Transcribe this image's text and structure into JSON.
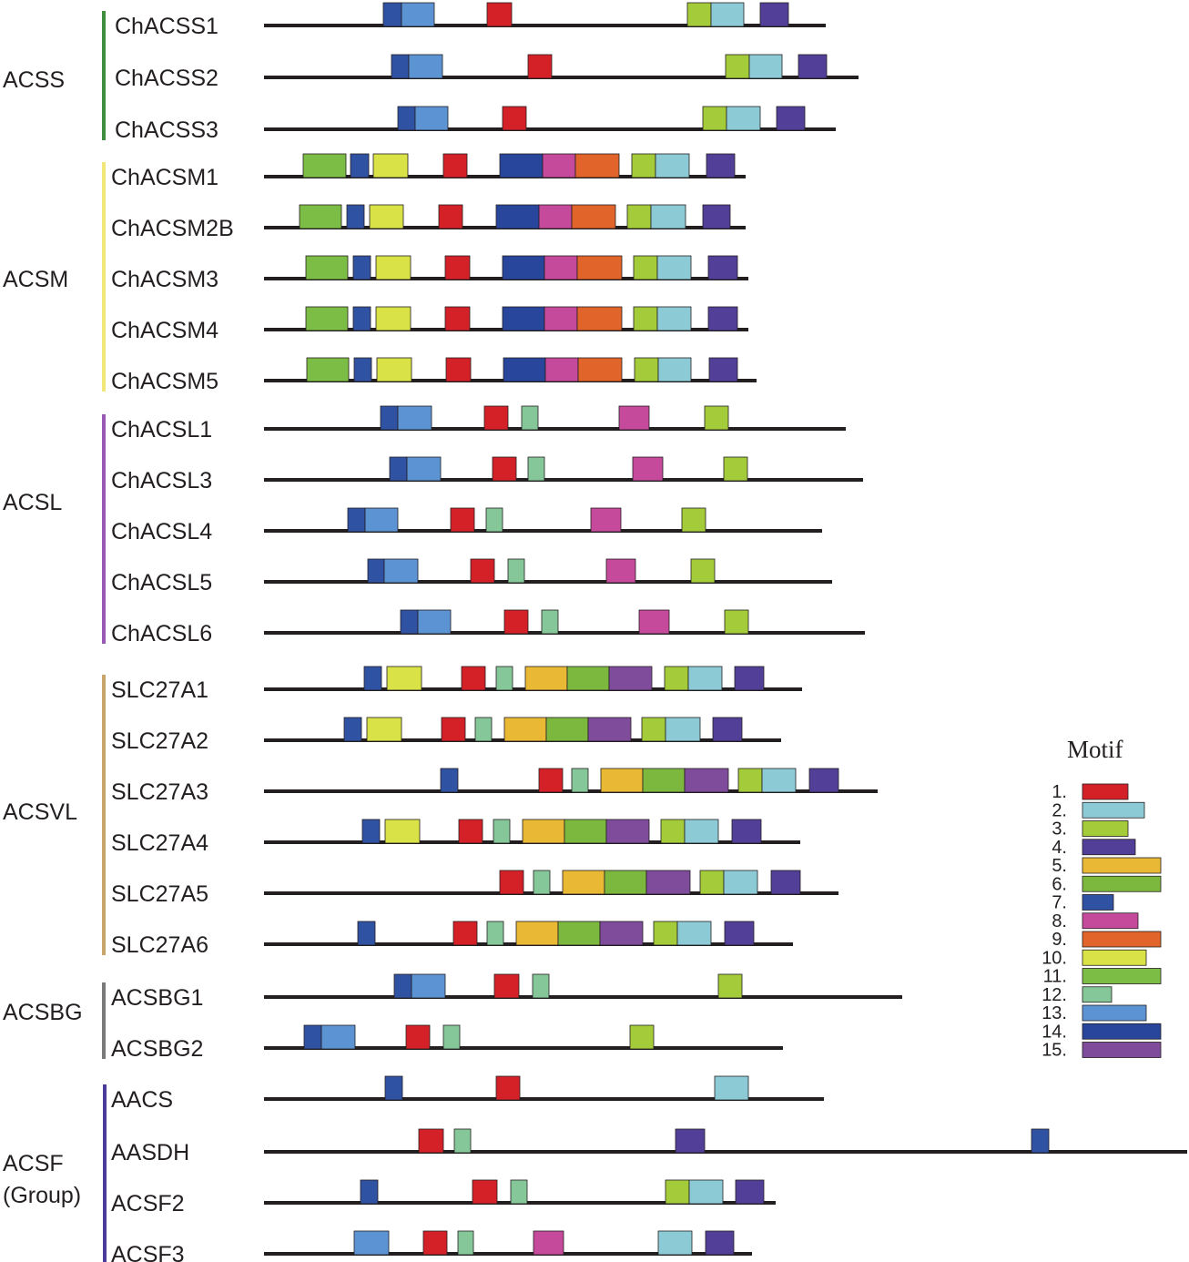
{
  "motif_colors": {
    "1": "#d42027",
    "2": "#8ccad6",
    "3": "#a4cc3a",
    "4": "#513f98",
    "5": "#e9b834",
    "6": "#7db83e",
    "7": "#2f52a3",
    "8": "#c54a9c",
    "9": "#e1642a",
    "10": "#d9e347",
    "11": "#7cbe45",
    "12": "#85c798",
    "13": "#5b93d3",
    "14": "#28479c",
    "15": "#7f4c9b"
  },
  "legend": {
    "title": "Motif",
    "items": [
      {
        "label": "1.",
        "motif": "1"
      },
      {
        "label": "2.",
        "motif": "2"
      },
      {
        "label": "3.",
        "motif": "3"
      },
      {
        "label": "4.",
        "motif": "4"
      },
      {
        "label": "5.",
        "motif": "5"
      },
      {
        "label": "6.",
        "motif": "6"
      },
      {
        "label": "7.",
        "motif": "7"
      },
      {
        "label": "8.",
        "motif": "8"
      },
      {
        "label": "9.",
        "motif": "9"
      },
      {
        "label": "10.",
        "motif": "10"
      },
      {
        "label": "11.",
        "motif": "11"
      },
      {
        "label": "12.",
        "motif": "12"
      },
      {
        "label": "13.",
        "motif": "13"
      },
      {
        "label": "14.",
        "motif": "14"
      },
      {
        "label": "15.",
        "motif": "15"
      }
    ]
  },
  "groups": [
    {
      "name": "ACSS",
      "color": "#3f8f3f",
      "proteins": [
        {
          "name": "ChACSS1",
          "motifs": [
            "7",
            "13",
            "1",
            "3",
            "2",
            "4"
          ]
        },
        {
          "name": "ChACSS2",
          "motifs": [
            "7",
            "13",
            "1",
            "3",
            "2",
            "4"
          ]
        },
        {
          "name": "ChACSS3",
          "motifs": [
            "7",
            "13",
            "1",
            "3",
            "2",
            "4"
          ]
        }
      ]
    },
    {
      "name": "ACSM",
      "color": "#f2e87a",
      "proteins": [
        {
          "name": "ChACSM1",
          "motifs": [
            "11",
            "7",
            "10",
            "1",
            "14",
            "8",
            "9",
            "3",
            "2",
            "4"
          ]
        },
        {
          "name": "ChACSM2B",
          "motifs": [
            "11",
            "7",
            "10",
            "1",
            "14",
            "8",
            "9",
            "3",
            "2",
            "4"
          ]
        },
        {
          "name": "ChACSM3",
          "motifs": [
            "11",
            "7",
            "10",
            "1",
            "14",
            "8",
            "9",
            "3",
            "2",
            "4"
          ]
        },
        {
          "name": "ChACSM4",
          "motifs": [
            "11",
            "7",
            "10",
            "1",
            "14",
            "8",
            "9",
            "3",
            "2",
            "4"
          ]
        },
        {
          "name": "ChACSM5",
          "motifs": [
            "11",
            "7",
            "10",
            "1",
            "14",
            "8",
            "9",
            "3",
            "2",
            "4"
          ]
        }
      ]
    },
    {
      "name": "ACSL",
      "color": "#9b59b6",
      "proteins": [
        {
          "name": "ChACSL1",
          "motifs": [
            "7",
            "13",
            "1",
            "12",
            "8",
            "3"
          ]
        },
        {
          "name": "ChACSL3",
          "motifs": [
            "7",
            "13",
            "1",
            "12",
            "8",
            "3"
          ]
        },
        {
          "name": "ChACSL4",
          "motifs": [
            "7",
            "13",
            "1",
            "12",
            "8",
            "3"
          ]
        },
        {
          "name": "ChACSL5",
          "motifs": [
            "7",
            "13",
            "1",
            "12",
            "8",
            "3"
          ]
        },
        {
          "name": "ChACSL6",
          "motifs": [
            "7",
            "13",
            "1",
            "12",
            "8",
            "3"
          ]
        }
      ]
    },
    {
      "name": "ACSVL",
      "color": "#c9a46b",
      "proteins": [
        {
          "name": "SLC27A1",
          "motifs": [
            "7",
            "10",
            "1",
            "12",
            "5",
            "6",
            "15",
            "3",
            "2",
            "4"
          ]
        },
        {
          "name": "SLC27A2",
          "motifs": [
            "7",
            "10",
            "1",
            "12",
            "5",
            "6",
            "15",
            "3",
            "2",
            "4"
          ]
        },
        {
          "name": "SLC27A3",
          "motifs": [
            "7",
            "1",
            "12",
            "5",
            "6",
            "15",
            "3",
            "2",
            "4"
          ]
        },
        {
          "name": "SLC27A4",
          "motifs": [
            "7",
            "10",
            "1",
            "12",
            "5",
            "6",
            "15",
            "3",
            "2",
            "4"
          ]
        },
        {
          "name": "SLC27A5",
          "motifs": [
            "1",
            "12",
            "5",
            "6",
            "15",
            "3",
            "2",
            "4"
          ]
        },
        {
          "name": "SLC27A6",
          "motifs": [
            "7",
            "1",
            "12",
            "5",
            "6",
            "15",
            "3",
            "2",
            "4"
          ]
        }
      ]
    },
    {
      "name": "ACSBG",
      "color": "#7a7a7a",
      "proteins": [
        {
          "name": "ACSBG1",
          "motifs": [
            "7",
            "13",
            "1",
            "12",
            "3"
          ]
        },
        {
          "name": "ACSBG2",
          "motifs": [
            "7",
            "13",
            "1",
            "12",
            "3"
          ]
        }
      ]
    },
    {
      "name": "ACSF",
      "name_line2": "(Group)",
      "color": "#4a3a9a",
      "proteins": [
        {
          "name": "AACS",
          "motifs": [
            "7",
            "1",
            "2"
          ]
        },
        {
          "name": "AASDH",
          "motifs": [
            "1",
            "12",
            "4",
            "7"
          ]
        },
        {
          "name": "ACSF2",
          "motifs": [
            "7",
            "1",
            "12",
            "3",
            "2",
            "4"
          ]
        },
        {
          "name": "ACSF3",
          "motifs": [
            "13",
            "1",
            "12",
            "8",
            "2",
            "4"
          ]
        }
      ]
    }
  ]
}
